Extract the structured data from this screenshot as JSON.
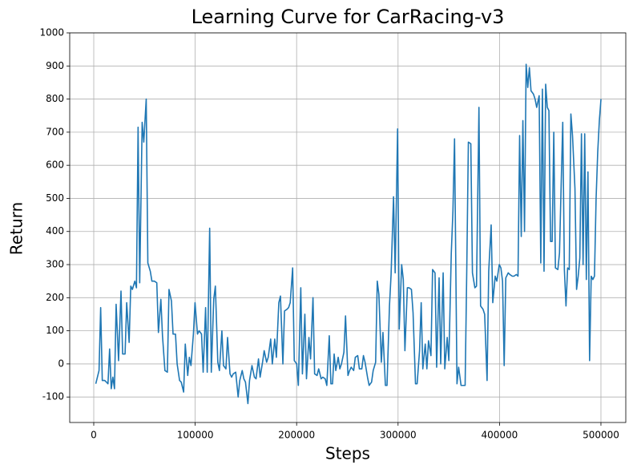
{
  "chart_data": {
    "type": "line",
    "title": "Learning Curve for CarRacing-v3",
    "x_label": "Steps",
    "y_label": "Return",
    "xlim": [
      -23700,
      524500
    ],
    "ylim": [
      -177,
      1000
    ],
    "xticks": [
      0,
      100000,
      200000,
      300000,
      400000,
      500000
    ],
    "yticks": [
      -100,
      0,
      100,
      200,
      300,
      400,
      500,
      600,
      700,
      800,
      900,
      1000
    ],
    "grid": true,
    "x": [
      2000,
      5208,
      6812,
      8416,
      10822,
      12426,
      14030,
      15634,
      17238,
      18842,
      20446,
      22050,
      24456,
      26862,
      28466,
      30872,
      32476,
      34882,
      36486,
      38090,
      40496,
      42100,
      43704,
      45308,
      47714,
      49318,
      51724,
      53328,
      55734,
      57338,
      59744,
      62150,
      63754,
      66160,
      67764,
      70170,
      72576,
      74180,
      76586,
      78190,
      80596,
      82200,
      84606,
      86210,
      88616,
      90220,
      92626,
      94230,
      95834,
      98240,
      99844,
      102250,
      103854,
      106260,
      107864,
      110270,
      111874,
      114280,
      115884,
      118290,
      119894,
      122300,
      123904,
      126310,
      127914,
      130320,
      131924,
      134330,
      135934,
      137538,
      139944,
      142350,
      143954,
      146360,
      147964,
      149568,
      151974,
      153578,
      155984,
      158390,
      159994,
      162400,
      164004,
      166410,
      168014,
      170420,
      172024,
      174430,
      176034,
      178440,
      180044,
      182450,
      184054,
      186460,
      188064,
      190470,
      192074,
      193678,
      196084,
      197688,
      200094,
      201698,
      204104,
      205708,
      208114,
      209718,
      212124,
      213728,
      216134,
      217738,
      220144,
      221748,
      224154,
      225758,
      228164,
      229768,
      232174,
      233778,
      235382,
      236986,
      238590,
      240996,
      242600,
      244204,
      246610,
      248214,
      250620,
      252224,
      253828,
      256234,
      257838,
      260244,
      261848,
      264254,
      265858,
      267462,
      269868,
      271472,
      273878,
      275482,
      277888,
      279492,
      281096,
      283502,
      285106,
      287512,
      289116,
      291522,
      293126,
      295532,
      297136,
      299542,
      301146,
      303552,
      305156,
      306760,
      309166,
      310770,
      313176,
      314780,
      317186,
      318790,
      321196,
      322800,
      324404,
      326810,
      328414,
      330018,
      332424,
      334028,
      336434,
      338038,
      340444,
      342048,
      344454,
      346058,
      348464,
      350068,
      352474,
      354078,
      355682,
      358088,
      359692,
      362098,
      363702,
      366108,
      367712,
      369316,
      371722,
      373326,
      375732,
      377336,
      379742,
      381346,
      383752,
      385356,
      387762,
      389366,
      391772,
      393376,
      395782,
      397386,
      399792,
      401396,
      403000,
      404604,
      406208,
      408614,
      410218,
      412624,
      414228,
      416634,
      418238,
      419842,
      421446,
      423050,
      424654,
      426258,
      427862,
      429466,
      431070,
      433476,
      435080,
      436684,
      439090,
      440694,
      442298,
      443902,
      445506,
      447110,
      448714,
      450318,
      451922,
      453526,
      455130,
      457536,
      459140,
      460744,
      462348,
      463952,
      465556,
      467160,
      468764,
      470368,
      471972,
      474378,
      475982,
      477586,
      479190,
      480794,
      482398,
      484002,
      485606,
      487210,
      488814,
      490418,
      492022,
      493626,
      495230,
      496834,
      498438,
      500042
    ],
    "series": [
      {
        "color": "#1f77b4",
        "values": [
          -60,
          -20,
          170,
          -50,
          -50,
          -55,
          -60,
          45,
          -75,
          -40,
          -75,
          180,
          10,
          220,
          30,
          30,
          185,
          65,
          235,
          225,
          250,
          230,
          715,
          245,
          730,
          670,
          800,
          305,
          280,
          250,
          250,
          245,
          95,
          195,
          85,
          -20,
          -25,
          225,
          190,
          90,
          90,
          0,
          -50,
          -55,
          -85,
          60,
          -35,
          20,
          -5,
          90,
          185,
          90,
          100,
          90,
          -25,
          170,
          -25,
          410,
          -25,
          195,
          235,
          5,
          -20,
          100,
          -5,
          -15,
          80,
          -30,
          -40,
          -30,
          -25,
          -100,
          -50,
          -20,
          -45,
          -55,
          -120,
          -50,
          -5,
          -40,
          -45,
          15,
          -40,
          5,
          40,
          5,
          20,
          75,
          0,
          75,
          20,
          185,
          205,
          0,
          160,
          165,
          170,
          185,
          290,
          10,
          0,
          -65,
          230,
          -30,
          150,
          -45,
          80,
          15,
          200,
          -30,
          -35,
          -15,
          -45,
          -40,
          -45,
          -65,
          85,
          -60,
          -60,
          30,
          -20,
          20,
          -15,
          0,
          35,
          145,
          -35,
          -20,
          -10,
          -20,
          20,
          25,
          -15,
          -15,
          25,
          5,
          -40,
          -65,
          -55,
          -20,
          5,
          250,
          210,
          5,
          95,
          -65,
          -65,
          175,
          270,
          505,
          275,
          710,
          105,
          300,
          255,
          40,
          230,
          230,
          225,
          155,
          -60,
          -60,
          40,
          185,
          -15,
          60,
          -15,
          70,
          25,
          285,
          275,
          -10,
          260,
          0,
          275,
          -15,
          80,
          10,
          335,
          460,
          680,
          -60,
          -10,
          -65,
          -65,
          -65,
          280,
          670,
          665,
          275,
          230,
          235,
          775,
          175,
          165,
          150,
          -50,
          280,
          420,
          185,
          265,
          250,
          300,
          290,
          250,
          -5,
          260,
          275,
          270,
          265,
          265,
          270,
          265,
          690,
          385,
          735,
          400,
          905,
          835,
          895,
          825,
          815,
          800,
          775,
          810,
          305,
          830,
          280,
          845,
          775,
          765,
          370,
          370,
          700,
          290,
          285,
          335,
          535,
          730,
          285,
          175,
          290,
          285,
          755,
          690,
          530,
          225,
          265,
          320,
          695,
          300,
          695,
          255,
          580,
          10,
          265,
          255,
          265,
          500,
          640,
          735,
          800
        ]
      }
    ]
  }
}
